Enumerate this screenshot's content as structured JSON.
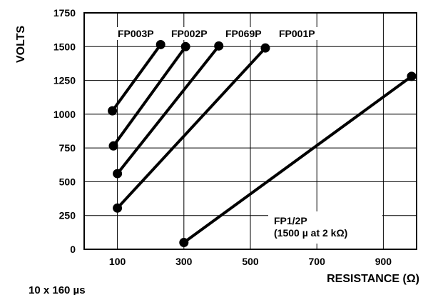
{
  "chart_data": {
    "type": "line",
    "title": "",
    "xlabel": "RESISTANCE (Ω)",
    "ylabel": "VOLTS",
    "xlim": [
      0,
      1000
    ],
    "ylim": [
      0,
      1750
    ],
    "x_ticks": [
      100,
      300,
      500,
      700,
      900
    ],
    "y_ticks": [
      0,
      250,
      500,
      750,
      1000,
      1250,
      1500,
      1750
    ],
    "grid": true,
    "legend": "none",
    "line_color": "#000000",
    "series": [
      {
        "name": "FP003P",
        "x": [
          85,
          230
        ],
        "y": [
          1025,
          1515
        ]
      },
      {
        "name": "FP002P",
        "x": [
          88,
          305
        ],
        "y": [
          765,
          1500
        ]
      },
      {
        "name": "FP069P",
        "x": [
          100,
          405
        ],
        "y": [
          560,
          1505
        ]
      },
      {
        "name": "FP001P",
        "x": [
          100,
          545
        ],
        "y": [
          305,
          1490
        ]
      },
      {
        "name": "FP1/2P",
        "x": [
          300,
          985
        ],
        "y": [
          50,
          1280
        ]
      }
    ],
    "annotations": [
      "(1500 µ at 2 kΩ)"
    ]
  },
  "footnote": "10 x 160 µs"
}
